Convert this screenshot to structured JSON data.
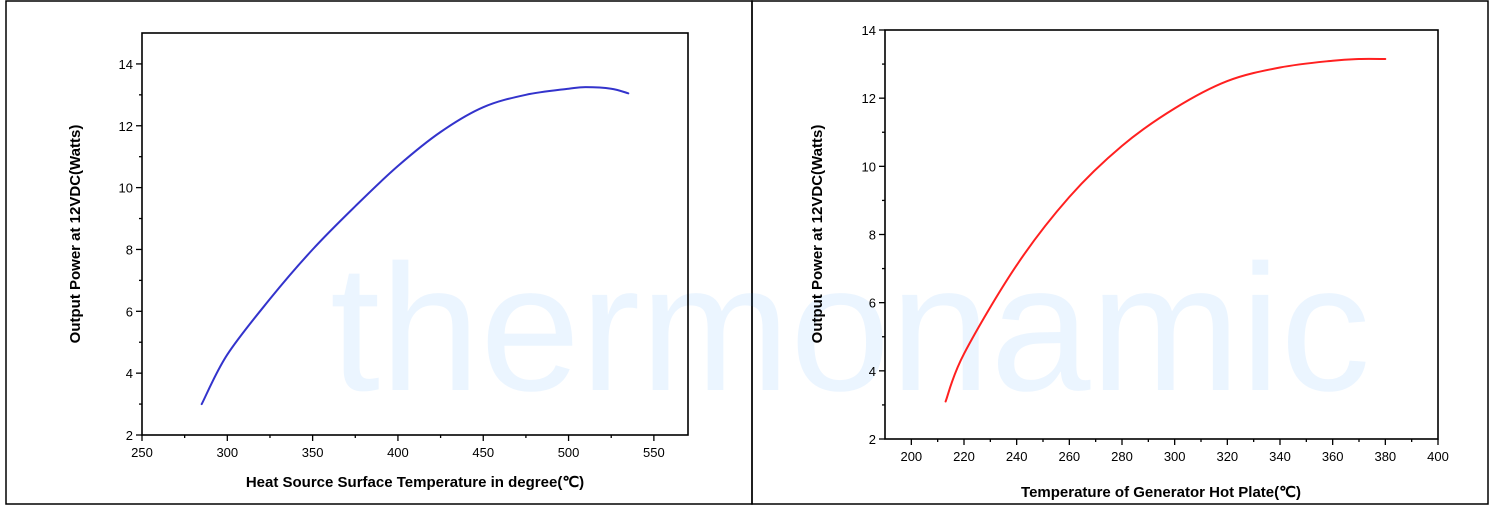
{
  "watermark": {
    "text": "thermonamic",
    "color": "#1e90ff"
  },
  "chart_data": [
    {
      "type": "line",
      "title": "",
      "xlabel": "Heat Source Surface Temperature in degree(℃)",
      "ylabel": "Output Power at 12VDC(Watts)",
      "xlim": [
        250,
        570
      ],
      "ylim": [
        2,
        15
      ],
      "xticks": [
        250,
        300,
        350,
        400,
        450,
        500,
        550
      ],
      "yticks": [
        2,
        4,
        6,
        8,
        10,
        12,
        14
      ],
      "grid": false,
      "series": [
        {
          "color": "#3333cc",
          "x": [
            285,
            300,
            325,
            350,
            375,
            400,
            425,
            450,
            475,
            500,
            510,
            525,
            535
          ],
          "y": [
            3.0,
            4.6,
            6.4,
            8.0,
            9.4,
            10.7,
            11.8,
            12.6,
            13.0,
            13.2,
            13.25,
            13.2,
            13.05
          ]
        }
      ]
    },
    {
      "type": "line",
      "title": "",
      "xlabel": "Temperature of Generator Hot Plate(℃)",
      "ylabel": "Output Power at 12VDC(Watts)",
      "xlim": [
        190,
        400
      ],
      "ylim": [
        2,
        14
      ],
      "xticks": [
        200,
        220,
        240,
        260,
        280,
        300,
        320,
        340,
        360,
        380,
        400
      ],
      "yticks": [
        2,
        4,
        6,
        8,
        10,
        12,
        14
      ],
      "grid": false,
      "series": [
        {
          "color": "#ff2020",
          "x": [
            213,
            220,
            240,
            260,
            280,
            300,
            320,
            340,
            360,
            370,
            380
          ],
          "y": [
            3.1,
            4.5,
            7.1,
            9.1,
            10.6,
            11.7,
            12.5,
            12.9,
            13.1,
            13.15,
            13.15
          ]
        }
      ]
    }
  ]
}
